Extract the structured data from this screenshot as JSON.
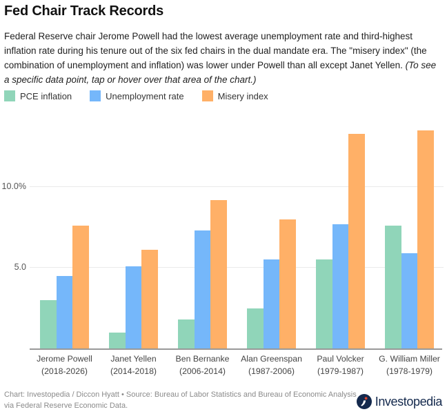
{
  "header": {
    "title": "Fed Chair Track Records",
    "description": "Federal Reserve chair Jerome Powell had the lowest average unemployment rate and third-highest inflation rate during his tenure out of the six fed chairs in the dual mandate era. The \"misery index\" (the combination of unemployment and inflation) was lower under Powell than all except Janet Yellen. ",
    "description_note": "(To see a specific data point, tap or hover over that area of the chart.)"
  },
  "legend": {
    "items": [
      {
        "label": "PCE inflation",
        "color": "#90d5b9"
      },
      {
        "label": "Unemployment rate",
        "color": "#75b7fa"
      },
      {
        "label": "Misery index",
        "color": "#ffb067"
      }
    ]
  },
  "chart_data": {
    "type": "bar",
    "categories": [
      {
        "name": "Jerome Powell",
        "term": "(2018-2026)"
      },
      {
        "name": "Janet Yellen",
        "term": "(2014-2018)"
      },
      {
        "name": "Ben Bernanke",
        "term": "(2006-2014)"
      },
      {
        "name": "Alan Greenspan",
        "term": "(1987-2006)"
      },
      {
        "name": "Paul Volcker",
        "term": "(1979-1987)"
      },
      {
        "name": "G. William Miller",
        "term": "(1978-1979)"
      }
    ],
    "series": [
      {
        "name": "PCE inflation",
        "color": "#90d5b9",
        "values": [
          3.0,
          1.0,
          1.8,
          2.5,
          5.5,
          7.6
        ]
      },
      {
        "name": "Unemployment rate",
        "color": "#75b7fa",
        "values": [
          4.5,
          5.1,
          7.3,
          5.5,
          7.7,
          5.9
        ]
      },
      {
        "name": "Misery index",
        "color": "#ffb067",
        "values": [
          7.6,
          6.1,
          9.2,
          8.0,
          13.3,
          13.5
        ]
      }
    ],
    "y_ticks": [
      {
        "value": 5,
        "label": "5.0"
      },
      {
        "value": 10,
        "label": "10.0%"
      }
    ],
    "ylim": [
      0,
      14.3
    ],
    "unit": "%",
    "grid": true,
    "legend_position": "top-left",
    "title": "Fed Chair Track Records",
    "xlabel": "",
    "ylabel": ""
  },
  "footer": {
    "credit_line1": "Chart: Investopedia / Diccon Hyatt • Source: Bureau of Labor Statistics and Bureau of Economic Analysis",
    "credit_line2": "via Federal Reserve Economic Data.",
    "brand": "Investopedia",
    "brand_color": "#14294d",
    "brand_dot_color": "#e0452d"
  }
}
